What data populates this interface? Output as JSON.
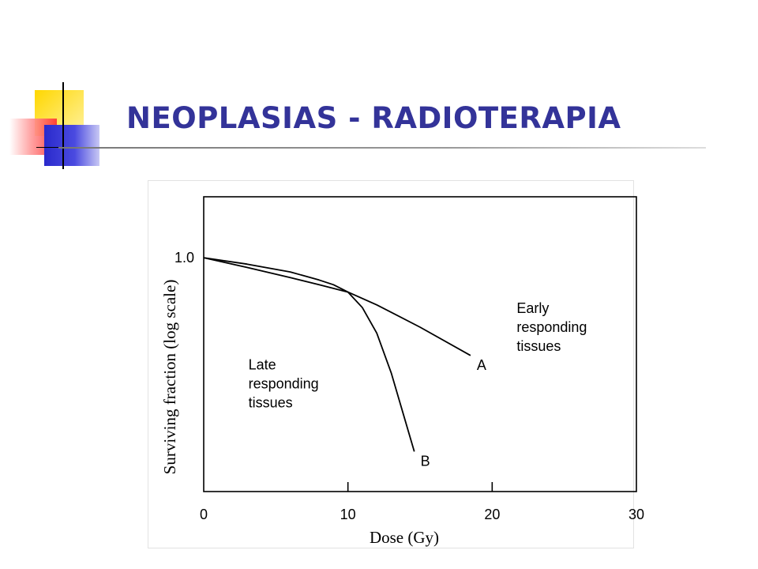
{
  "slide": {
    "title": "NEOPLASIAS - RADIOTERAPIA"
  },
  "chart_data": {
    "type": "line",
    "xlabel": "Dose (Gy)",
    "ylabel": "Surviving fraction (log scale)",
    "xlim": [
      0,
      30
    ],
    "x_ticks": [
      0,
      10,
      20,
      30
    ],
    "y_ticks": [
      {
        "value": 1.0,
        "label": "1.0"
      }
    ],
    "y_scale": "log",
    "grid": false,
    "series": [
      {
        "name": "A",
        "points": [
          [
            0,
            1.0
          ],
          [
            3,
            0.955
          ],
          [
            6,
            0.91
          ],
          [
            8,
            0.88
          ],
          [
            10,
            0.85
          ],
          [
            12,
            0.8
          ],
          [
            15,
            0.72
          ],
          [
            18.5,
            0.63
          ]
        ]
      },
      {
        "name": "B",
        "points": [
          [
            0,
            1.0
          ],
          [
            3,
            0.97
          ],
          [
            6,
            0.935
          ],
          [
            8,
            0.9
          ],
          [
            9,
            0.88
          ],
          [
            10,
            0.85
          ],
          [
            11,
            0.79
          ],
          [
            12,
            0.7
          ],
          [
            13,
            0.58
          ],
          [
            14.6,
            0.4
          ]
        ]
      }
    ],
    "annotations": [
      {
        "text": "Early responding tissues",
        "lines": [
          "Early",
          "responding",
          "tissues"
        ],
        "x": 21.7,
        "y": 0.77
      },
      {
        "text": "Late responding tissues",
        "lines": [
          "Late",
          "responding",
          "tissues"
        ],
        "x": 3.1,
        "y": 0.59
      }
    ]
  }
}
